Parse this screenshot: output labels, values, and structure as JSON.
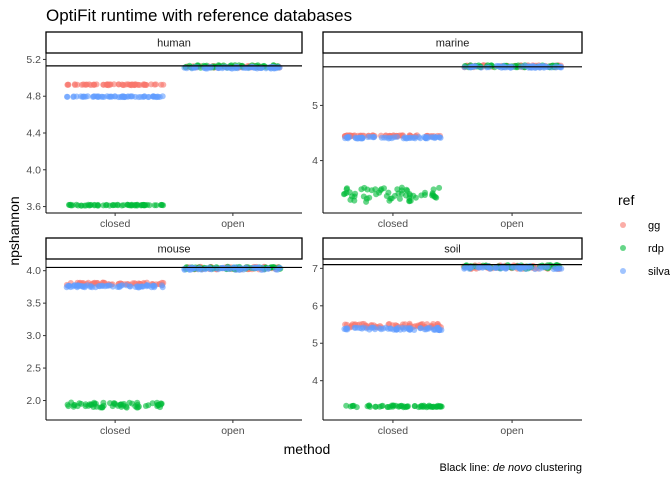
{
  "chart_data": {
    "type": "scatter",
    "title": "OptiFit runtime with reference databases",
    "xlabel": "method",
    "ylabel": "npshannon",
    "categories": [
      "closed",
      "open"
    ],
    "legend": {
      "title": "ref",
      "position": "right",
      "entries": [
        {
          "name": "gg",
          "color": "#F8766D"
        },
        {
          "name": "rdp",
          "color": "#00BA38"
        },
        {
          "name": "silva",
          "color": "#619CFF"
        }
      ]
    },
    "caption_prefix": "Black line: ",
    "caption_italic": "de novo",
    "caption_suffix": " clustering",
    "panels": [
      {
        "name": "human",
        "ylim": [
          3.53,
          5.27
        ],
        "yticks": [
          3.6,
          4.0,
          4.4,
          4.8,
          5.2
        ],
        "ytick_labels": [
          "3.6",
          "4.0",
          "4.4",
          "4.8",
          "5.2"
        ],
        "de_novo": 5.13,
        "series": [
          {
            "ref": "gg",
            "closed": [
              4.92,
              4.93
            ],
            "open": [
              5.11,
              5.13
            ]
          },
          {
            "ref": "rdp",
            "closed": [
              3.61,
              3.62
            ],
            "open": [
              5.11,
              5.14
            ]
          },
          {
            "ref": "silva",
            "closed": [
              4.79,
              4.8
            ],
            "open": [
              5.1,
              5.12
            ]
          }
        ]
      },
      {
        "name": "marine",
        "ylim": [
          3.05,
          5.95
        ],
        "yticks": [
          4,
          5
        ],
        "ytick_labels": [
          "4",
          "5"
        ],
        "de_novo": 5.7,
        "series": [
          {
            "ref": "gg",
            "closed": [
              4.44,
              4.46
            ],
            "open": [
              5.69,
              5.73
            ]
          },
          {
            "ref": "rdp",
            "closed": [
              3.25,
              3.52
            ],
            "open": [
              5.69,
              5.73
            ]
          },
          {
            "ref": "silva",
            "closed": [
              4.4,
              4.43
            ],
            "open": [
              5.68,
              5.72
            ]
          }
        ]
      },
      {
        "name": "mouse",
        "ylim": [
          1.7,
          4.18
        ],
        "yticks": [
          2.0,
          2.5,
          3.0,
          3.5,
          4.0
        ],
        "ytick_labels": [
          "2.0",
          "2.5",
          "3.0",
          "3.5",
          "4.0"
        ],
        "de_novo": 4.05,
        "series": [
          {
            "ref": "gg",
            "closed": [
              3.78,
              3.82
            ],
            "open": [
              4.02,
              4.06
            ]
          },
          {
            "ref": "rdp",
            "closed": [
              1.89,
              1.97
            ],
            "open": [
              4.02,
              4.06
            ]
          },
          {
            "ref": "silva",
            "closed": [
              3.74,
              3.78
            ],
            "open": [
              4.01,
              4.05
            ]
          }
        ]
      },
      {
        "name": "soil",
        "ylim": [
          2.95,
          7.25
        ],
        "yticks": [
          4,
          5,
          6,
          7
        ],
        "ytick_labels": [
          "4",
          "5",
          "6",
          "7"
        ],
        "de_novo": 7.1,
        "series": [
          {
            "ref": "gg",
            "closed": [
              5.42,
              5.52
            ],
            "open": [
              6.98,
              7.08
            ]
          },
          {
            "ref": "rdp",
            "closed": [
              3.29,
              3.34
            ],
            "open": [
              6.99,
              7.09
            ]
          },
          {
            "ref": "silva",
            "closed": [
              5.35,
              5.42
            ],
            "open": [
              6.98,
              7.06
            ]
          }
        ]
      }
    ]
  }
}
